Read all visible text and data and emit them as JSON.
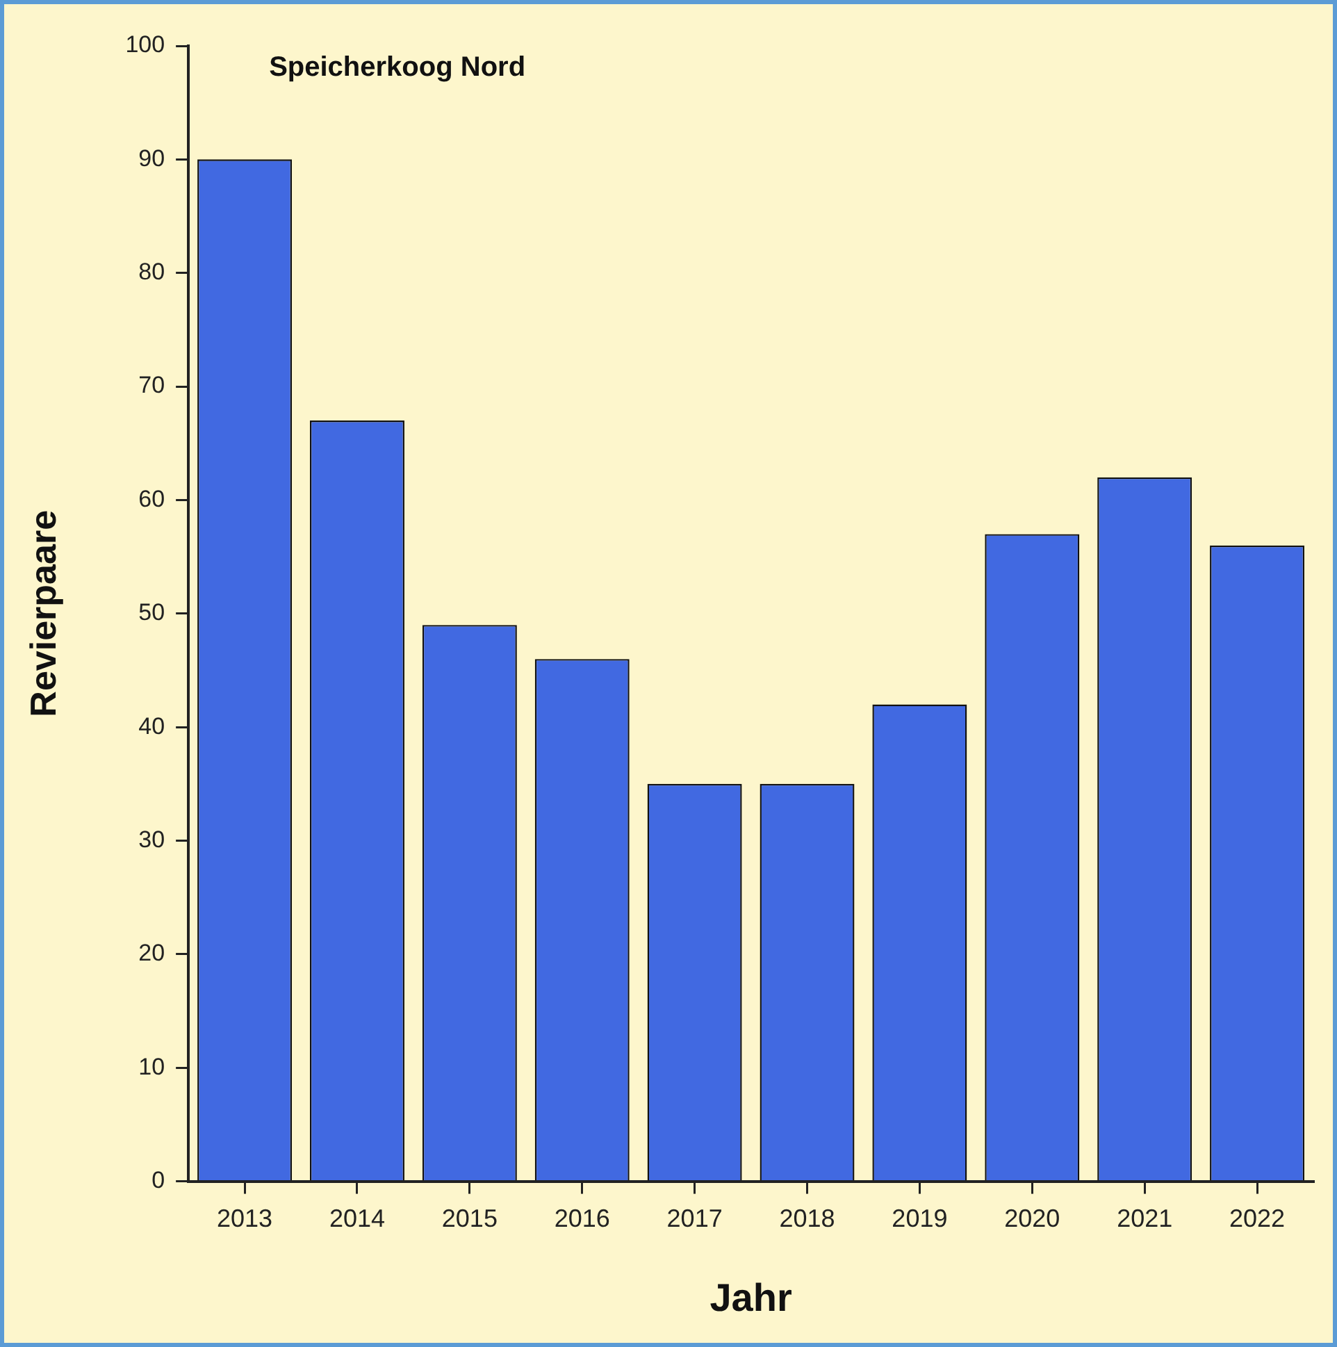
{
  "chart_data": {
    "type": "bar",
    "title": "Speicherkoog Nord",
    "xlabel": "Jahr",
    "ylabel": "Revierpaare",
    "categories": [
      "2013",
      "2014",
      "2015",
      "2016",
      "2017",
      "2018",
      "2019",
      "2020",
      "2021",
      "2022"
    ],
    "values": [
      90,
      67,
      49,
      46,
      35,
      35,
      42,
      57,
      62,
      56
    ],
    "color": "#4169e1",
    "ylim": [
      0,
      100
    ],
    "yticks": [
      0,
      10,
      20,
      30,
      40,
      50,
      60,
      70,
      80,
      90,
      100
    ],
    "grid": false,
    "legend": false
  }
}
